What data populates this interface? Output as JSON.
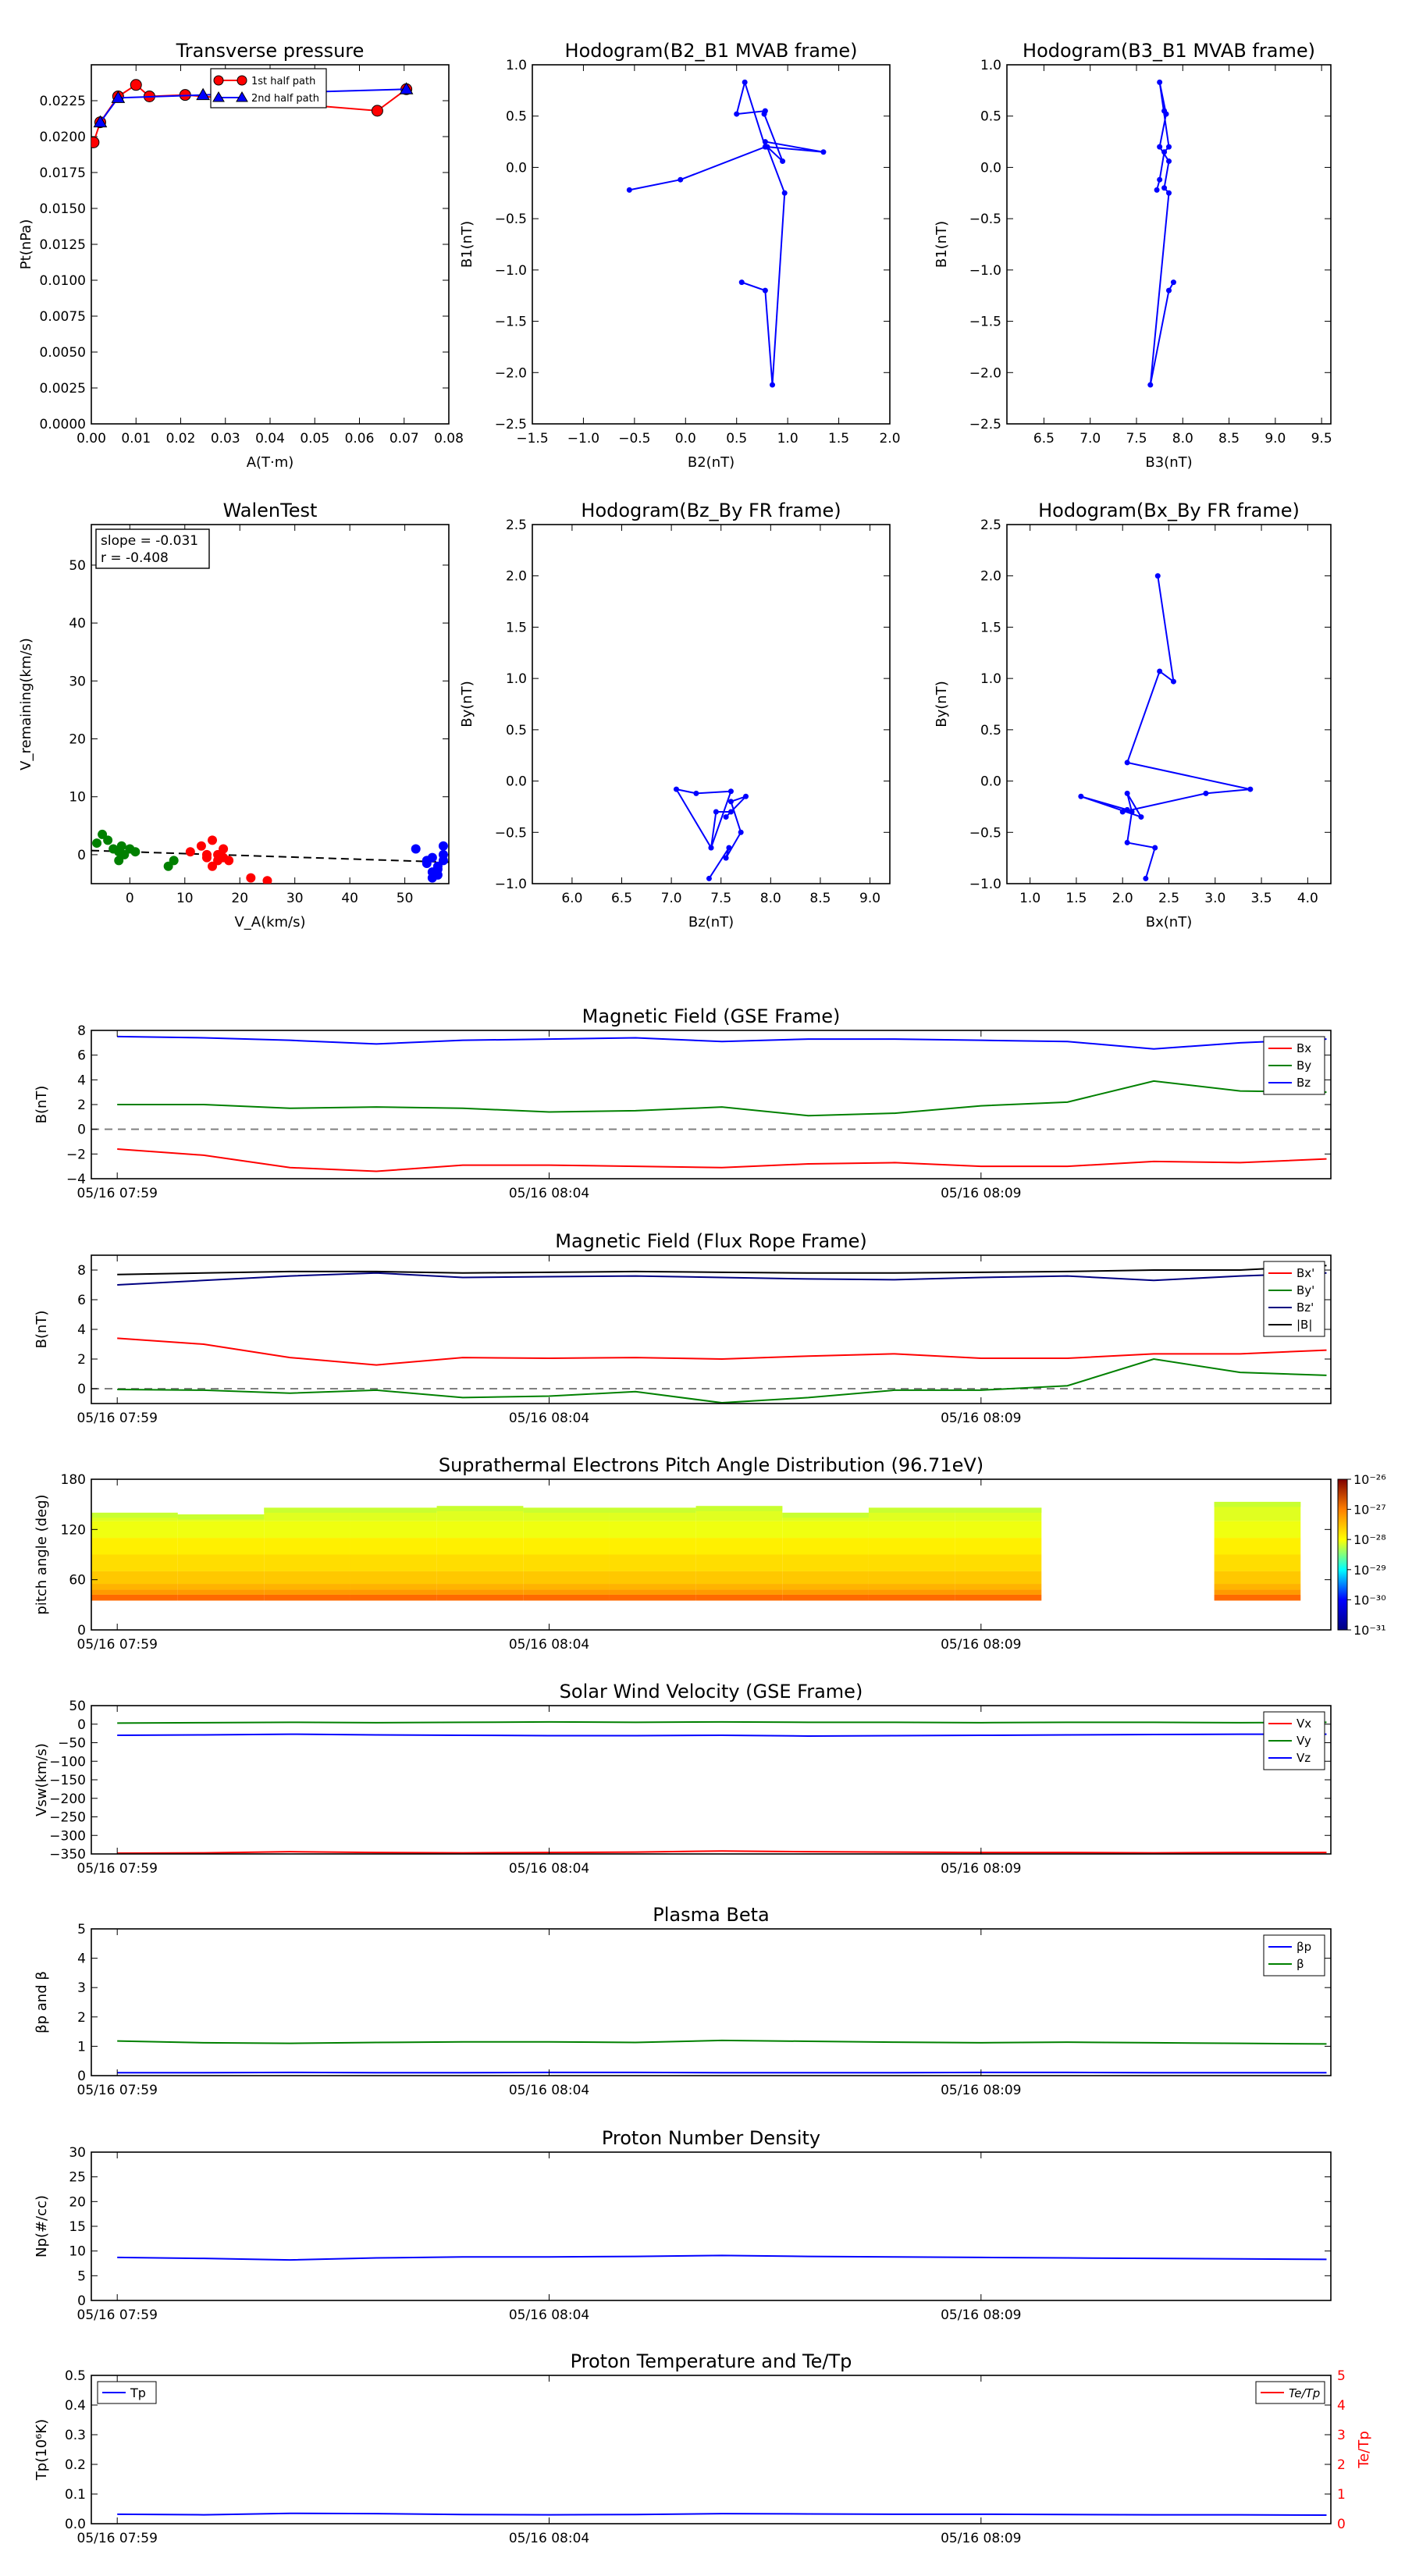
{
  "chart_data": [
    {
      "id": "tp",
      "type": "scatter",
      "title": "Transverse pressure",
      "xlabel": "A(T·m)",
      "ylabel": "Pt(nPa)",
      "xlim": [
        0,
        0.08
      ],
      "ylim": [
        0,
        0.025
      ],
      "xticks": [
        "0.00",
        "0.01",
        "0.02",
        "0.03",
        "0.04",
        "0.05",
        "0.06",
        "0.07",
        "0.08"
      ],
      "yticks": [
        "0.0000",
        "0.0025",
        "0.0050",
        "0.0075",
        "0.0100",
        "0.0125",
        "0.0150",
        "0.0175",
        "0.0200",
        "0.0225"
      ],
      "legend": "top-right",
      "series": [
        {
          "name": "1st half path",
          "marker": "circle",
          "color": "#ff0000",
          "x": [
            0.0005,
            0.002,
            0.006,
            0.01,
            0.013,
            0.021,
            0.064,
            0.0705
          ],
          "y": [
            0.0196,
            0.021,
            0.0228,
            0.0236,
            0.0228,
            0.0229,
            0.0218,
            0.0233
          ]
        },
        {
          "name": "2nd half path",
          "marker": "triangle",
          "color": "#0000ff",
          "x": [
            0.0705,
            0.025,
            0.006,
            0.002
          ],
          "y": [
            0.0233,
            0.0229,
            0.0227,
            0.021
          ]
        }
      ]
    },
    {
      "id": "h1",
      "type": "line",
      "title": "Hodogram(B2_B1 MVAB frame)",
      "xlabel": "B2(nT)",
      "ylabel": "B1(nT)",
      "xlim": [
        -1.5,
        2.0
      ],
      "ylim": [
        -2.5,
        1.0
      ],
      "xticks": [
        "−1.5",
        "−1.0",
        "−0.5",
        "0.0",
        "0.5",
        "1.0",
        "1.5",
        "2.0"
      ],
      "yticks": [
        "−2.5",
        "−2.0",
        "−1.5",
        "−1.0",
        "−0.5",
        "0.0",
        "0.5",
        "1.0"
      ],
      "x": [
        0.55,
        0.78,
        0.85,
        0.97,
        0.78,
        1.35,
        0.8,
        0.95,
        0.77,
        0.78,
        0.5,
        0.58,
        0.78,
        -0.05,
        -0.55
      ],
      "y": [
        -1.12,
        -1.2,
        -2.12,
        -0.25,
        0.25,
        0.15,
        0.2,
        0.06,
        0.52,
        0.55,
        0.52,
        0.83,
        0.2,
        -0.12,
        -0.22
      ]
    },
    {
      "id": "h2",
      "type": "line",
      "title": "Hodogram(B3_B1 MVAB frame)",
      "xlabel": "B3(nT)",
      "ylabel": "B1(nT)",
      "xlim": [
        6.1,
        9.6
      ],
      "ylim": [
        -2.5,
        1.0
      ],
      "xticks": [
        "6.5",
        "7.0",
        "7.5",
        "8.0",
        "8.5",
        "9.0",
        "9.5"
      ],
      "yticks": [
        "−2.5",
        "−2.0",
        "−1.5",
        "−1.0",
        "−0.5",
        "0.0",
        "0.5",
        "1.0"
      ],
      "x": [
        7.9,
        7.85,
        7.65,
        7.85,
        7.8,
        7.85,
        7.75,
        7.82,
        7.8,
        7.82,
        7.75,
        7.85,
        7.8,
        7.75,
        7.72
      ],
      "y": [
        -1.12,
        -1.2,
        -2.12,
        -0.25,
        -0.2,
        0.06,
        0.2,
        0.52,
        0.55,
        0.52,
        0.83,
        0.2,
        0.15,
        -0.12,
        -0.22
      ]
    },
    {
      "id": "walen",
      "type": "scatter",
      "title": "WalenTest",
      "xlabel": "V_A(km/s)",
      "ylabel": "V_remaining(km/s)",
      "xlim": [
        -7,
        58
      ],
      "ylim": [
        -5,
        57
      ],
      "xticks": [
        "0",
        "10",
        "20",
        "30",
        "40",
        "50"
      ],
      "yticks": [
        "0",
        "10",
        "20",
        "30",
        "40",
        "50"
      ],
      "annotation": [
        "slope = -0.031",
        "r = -0.408"
      ],
      "fit": {
        "slope": -0.031,
        "intercept": 0.5
      },
      "green_x": [
        -6,
        -5,
        -4,
        -3,
        -2,
        -1.5,
        -1,
        0,
        1,
        -2,
        7,
        8
      ],
      "green_y": [
        2,
        3.5,
        2.5,
        1,
        0.5,
        1.5,
        0,
        1,
        0.5,
        -1,
        -2,
        -1
      ],
      "red_x": [
        11,
        13,
        14,
        15,
        16,
        17,
        18,
        14,
        15,
        16,
        17,
        22,
        25
      ],
      "red_y": [
        0.5,
        1.5,
        -0.5,
        2.5,
        0,
        1,
        -1,
        0,
        -2,
        -1,
        -0.5,
        -4,
        -4.5
      ],
      "blue_x": [
        52,
        54,
        55,
        56,
        57,
        55,
        56,
        57,
        54,
        56,
        57,
        55
      ],
      "blue_y": [
        1,
        -1,
        -3,
        -2,
        0,
        -4,
        -2.5,
        1.5,
        -1.5,
        -3.5,
        -1,
        -0.5
      ]
    },
    {
      "id": "h3",
      "type": "line",
      "title": "Hodogram(Bz_By FR frame)",
      "xlabel": "Bz(nT)",
      "ylabel": "By(nT)",
      "xlim": [
        5.6,
        9.2
      ],
      "ylim": [
        -1.0,
        2.5
      ],
      "xticks": [
        "6.0",
        "6.5",
        "7.0",
        "7.5",
        "8.0",
        "8.5",
        "9.0"
      ],
      "yticks": [
        "−1.0",
        "−0.5",
        "0.0",
        "0.5",
        "1.0",
        "1.5",
        "2.0",
        "2.5"
      ],
      "x": [
        7.38,
        7.58,
        7.55,
        7.7,
        7.6,
        7.75,
        7.55,
        7.6,
        7.45,
        7.4,
        7.6,
        7.25,
        7.05,
        7.4
      ],
      "y": [
        -0.95,
        -0.65,
        -0.75,
        -0.5,
        -0.2,
        -0.15,
        -0.35,
        -0.3,
        -0.3,
        -0.65,
        -0.1,
        -0.12,
        -0.08,
        -0.65
      ]
    },
    {
      "id": "h4",
      "type": "line",
      "title": "Hodogram(Bx_By FR frame)",
      "xlabel": "Bx(nT)",
      "ylabel": "By(nT)",
      "xlim": [
        0.75,
        4.25
      ],
      "ylim": [
        -1.0,
        2.5
      ],
      "xticks": [
        "1.0",
        "1.5",
        "2.0",
        "2.5",
        "3.0",
        "3.5",
        "4.0"
      ],
      "yticks": [
        "−1.0",
        "−0.5",
        "0.0",
        "0.5",
        "1.0",
        "1.5",
        "2.0",
        "2.5"
      ],
      "x": [
        2.25,
        2.35,
        2.05,
        2.1,
        2.05,
        2.2,
        1.55,
        2.05,
        2.0,
        2.9,
        3.38,
        2.05,
        2.4,
        2.55,
        2.38
      ],
      "y": [
        -0.95,
        -0.65,
        -0.6,
        -0.3,
        -0.12,
        -0.35,
        -0.15,
        -0.28,
        -0.3,
        -0.12,
        -0.08,
        0.18,
        1.07,
        0.97,
        2.0
      ]
    },
    {
      "id": "ts_b",
      "type": "line",
      "title": "Magnetic Field (GSE Frame)",
      "ylabel": "B(nT)",
      "ylim": [
        -4,
        8
      ],
      "yticks": [
        "−4",
        "−2",
        "0",
        "2",
        "4",
        "6",
        "8"
      ],
      "xtick_labels": [
        "05/16 07:59",
        "05/16 08:04",
        "05/16 08:09"
      ],
      "legend": "right",
      "x_minutes": [
        0,
        1,
        2,
        3,
        4,
        5,
        6,
        7,
        8,
        9,
        10,
        11,
        12,
        13,
        14
      ],
      "series": [
        {
          "name": "Bx",
          "color": "#ff0000",
          "values": [
            -1.6,
            -2.1,
            -3.1,
            -3.4,
            -2.9,
            -2.9,
            -3.0,
            -3.1,
            -2.8,
            -2.7,
            -3.0,
            -3.0,
            -2.6,
            -2.7,
            -2.4
          ]
        },
        {
          "name": "By",
          "color": "#008000",
          "values": [
            2.0,
            2.0,
            1.7,
            1.8,
            1.7,
            1.4,
            1.5,
            1.8,
            1.1,
            1.3,
            1.9,
            2.2,
            3.9,
            3.1,
            3.0
          ]
        },
        {
          "name": "Bz",
          "color": "#0000ff",
          "values": [
            7.5,
            7.4,
            7.2,
            6.9,
            7.2,
            7.3,
            7.4,
            7.1,
            7.3,
            7.3,
            7.2,
            7.1,
            6.5,
            7.0,
            7.3
          ]
        }
      ]
    },
    {
      "id": "ts_fr",
      "type": "line",
      "title": "Magnetic Field (Flux Rope Frame)",
      "ylabel": "B(nT)",
      "ylim": [
        -1,
        9
      ],
      "yticks": [
        "0",
        "2",
        "4",
        "6",
        "8"
      ],
      "xtick_labels": [
        "05/16 07:59",
        "05/16 08:04",
        "05/16 08:09"
      ],
      "legend": "right",
      "x_minutes": [
        0,
        1,
        2,
        3,
        4,
        5,
        6,
        7,
        8,
        9,
        10,
        11,
        12,
        13,
        14
      ],
      "series": [
        {
          "name": "Bx'",
          "color": "#ff0000",
          "values": [
            3.4,
            3.0,
            2.1,
            1.6,
            2.1,
            2.05,
            2.1,
            2.0,
            2.2,
            2.35,
            2.05,
            2.05,
            2.35,
            2.35,
            2.6
          ]
        },
        {
          "name": "By'",
          "color": "#008000",
          "values": [
            -0.05,
            -0.1,
            -0.3,
            -0.1,
            -0.6,
            -0.5,
            -0.2,
            -0.95,
            -0.6,
            -0.1,
            -0.1,
            0.2,
            2.0,
            1.1,
            0.9
          ]
        },
        {
          "name": "Bz'",
          "color": "#000080",
          "values": [
            7.0,
            7.3,
            7.6,
            7.8,
            7.5,
            7.55,
            7.6,
            7.5,
            7.4,
            7.35,
            7.5,
            7.6,
            7.3,
            7.6,
            7.8
          ]
        },
        {
          "name": "|B|",
          "color": "#000000",
          "values": [
            7.7,
            7.8,
            7.9,
            7.9,
            7.8,
            7.85,
            7.9,
            7.85,
            7.8,
            7.8,
            7.85,
            7.9,
            8.0,
            8.0,
            8.3
          ]
        }
      ]
    },
    {
      "id": "ts_pad",
      "type": "heatmap",
      "title": "Suprathermal Electrons Pitch Angle Distribution (96.71eV)",
      "ylabel": "pitch angle (deg)",
      "ylim": [
        0,
        180
      ],
      "yticks": [
        "0",
        "60",
        "120",
        "180"
      ],
      "xtick_labels": [
        "05/16 07:59",
        "05/16 08:04",
        "05/16 08:09"
      ],
      "colorbar": {
        "labels": [
          "10⁻²⁶",
          "10⁻²⁷",
          "10⁻²⁸",
          "10⁻²⁹",
          "10⁻³⁰",
          "10⁻³¹"
        ]
      },
      "columns": [
        {
          "t0": 0,
          "t1": 1,
          "angle_top": 140
        },
        {
          "t0": 1,
          "t1": 2,
          "angle_top": 138
        },
        {
          "t0": 2,
          "t1": 3,
          "angle_top": 146
        },
        {
          "t0": 3,
          "t1": 4,
          "angle_top": 146
        },
        {
          "t0": 4,
          "t1": 5,
          "angle_top": 148
        },
        {
          "t0": 5,
          "t1": 6,
          "angle_top": 146
        },
        {
          "t0": 6,
          "t1": 7,
          "angle_top": 146
        },
        {
          "t0": 7,
          "t1": 8,
          "angle_top": 148
        },
        {
          "t0": 8,
          "t1": 9,
          "angle_top": 140
        },
        {
          "t0": 9,
          "t1": 10,
          "angle_top": 146
        },
        {
          "t0": 10,
          "t1": 11,
          "angle_top": 146
        },
        {
          "t0": 13,
          "t1": 14,
          "angle_top": 153
        }
      ]
    },
    {
      "id": "ts_v",
      "type": "line",
      "title": "Solar Wind Velocity (GSE Frame)",
      "ylabel": "Vsw(km/s)",
      "ylim": [
        -350,
        50
      ],
      "yticks": [
        "−350",
        "−300",
        "−250",
        "−200",
        "−150",
        "−100",
        "−50",
        "0",
        "50"
      ],
      "xtick_labels": [
        "05/16 07:59",
        "05/16 08:04",
        "05/16 08:09"
      ],
      "legend": "right",
      "x_minutes": [
        0,
        1,
        2,
        3,
        4,
        5,
        6,
        7,
        8,
        9,
        10,
        11,
        12,
        13,
        14
      ],
      "series": [
        {
          "name": "Vx",
          "color": "#ff0000",
          "values": [
            -348,
            -347,
            -344,
            -346,
            -347,
            -346,
            -345,
            -342,
            -344,
            -345,
            -346,
            -346,
            -347,
            -346,
            -346
          ]
        },
        {
          "name": "Vy",
          "color": "#008000",
          "values": [
            3,
            4,
            5,
            4,
            5,
            6,
            5,
            6,
            5,
            5,
            4,
            5,
            5,
            4,
            5
          ]
        },
        {
          "name": "Vz",
          "color": "#0000ff",
          "values": [
            -30,
            -29,
            -27,
            -29,
            -30,
            -31,
            -31,
            -30,
            -32,
            -31,
            -30,
            -29,
            -28,
            -27,
            -27
          ]
        }
      ]
    },
    {
      "id": "ts_beta",
      "type": "line",
      "title": "Plasma Beta",
      "ylabel": "βp and β",
      "ylim": [
        0,
        5
      ],
      "yticks": [
        "0",
        "1",
        "2",
        "3",
        "4",
        "5"
      ],
      "xtick_labels": [
        "05/16 07:59",
        "05/16 08:04",
        "05/16 08:09"
      ],
      "legend": "top-right",
      "x_minutes": [
        0,
        1,
        2,
        3,
        4,
        5,
        6,
        7,
        8,
        9,
        10,
        11,
        12,
        13,
        14
      ],
      "series": [
        {
          "name": "βp",
          "color": "#0000ff",
          "values": [
            0.1,
            0.1,
            0.11,
            0.1,
            0.1,
            0.11,
            0.11,
            0.1,
            0.1,
            0.1,
            0.11,
            0.11,
            0.1,
            0.1,
            0.1
          ]
        },
        {
          "name": "β",
          "color": "#008000",
          "values": [
            1.18,
            1.12,
            1.1,
            1.13,
            1.15,
            1.15,
            1.13,
            1.2,
            1.17,
            1.14,
            1.12,
            1.14,
            1.12,
            1.1,
            1.08
          ]
        }
      ]
    },
    {
      "id": "ts_np",
      "type": "line",
      "title": "Proton Number Density",
      "ylabel": "Np(#/cc)",
      "ylim": [
        0,
        30
      ],
      "yticks": [
        "0",
        "5",
        "10",
        "15",
        "20",
        "25",
        "30"
      ],
      "xtick_labels": [
        "05/16 07:59",
        "05/16 08:04",
        "05/16 08:09"
      ],
      "x_minutes": [
        0,
        1,
        2,
        3,
        4,
        5,
        6,
        7,
        8,
        9,
        10,
        11,
        12,
        13,
        14
      ],
      "series": [
        {
          "name": "Np",
          "color": "#0000ff",
          "values": [
            8.7,
            8.5,
            8.2,
            8.6,
            8.8,
            8.8,
            8.9,
            9.1,
            8.9,
            8.8,
            8.7,
            8.6,
            8.5,
            8.4,
            8.3
          ]
        }
      ]
    },
    {
      "id": "ts_tp",
      "type": "line",
      "title": "Proton Temperature and Te/Tp",
      "ylabel": "Tp(10⁶K)",
      "ylim": [
        0,
        0.5
      ],
      "yticks": [
        "0.0",
        "0.1",
        "0.2",
        "0.3",
        "0.4",
        "0.5"
      ],
      "y2label": "Te/Tp",
      "y2lim": [
        0,
        5
      ],
      "y2ticks": [
        "0",
        "1",
        "2",
        "3",
        "4",
        "5"
      ],
      "xtick_labels": [
        "05/16 07:59",
        "05/16 08:04",
        "05/16 08:09"
      ],
      "legend_left": "Tp",
      "legend_right": "Te/Tp",
      "x_minutes": [
        0,
        1,
        2,
        3,
        4,
        5,
        6,
        7,
        8,
        9,
        10,
        11,
        12,
        13,
        14
      ],
      "series": [
        {
          "name": "Tp",
          "color": "#0000ff",
          "values": [
            0.032,
            0.03,
            0.035,
            0.034,
            0.031,
            0.03,
            0.031,
            0.034,
            0.033,
            0.032,
            0.032,
            0.031,
            0.03,
            0.03,
            0.029
          ]
        }
      ]
    }
  ]
}
